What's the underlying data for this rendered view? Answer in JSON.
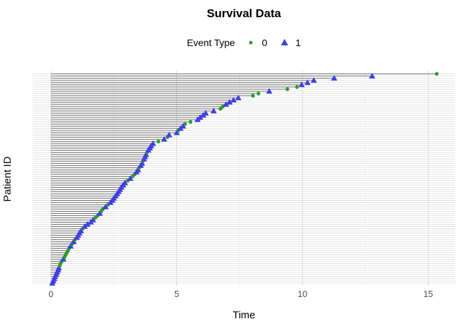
{
  "chart_data": {
    "type": "scatter",
    "title": "Survival Data",
    "xlabel": "Time",
    "ylabel": "Patient ID",
    "xlim": [
      0,
      15.34
    ],
    "x_ticks": [
      "0",
      "5",
      "10",
      "15"
    ],
    "x_tick_values": [
      0,
      5,
      10,
      15
    ],
    "x_minor_tick_values": [
      2.5,
      7.5,
      12.5
    ],
    "y_tick_labels_shown": false,
    "grid": "light gray horizontal line per patient row, vertical major/minor gridlines",
    "legend_position": "top-center",
    "note": "Each row is one patient sorted by time; a dark gray segment runs from time 0 to the event time, ending in a marker: event type 0 = green circle, event type 1 = blue triangle.",
    "n_patients": 97,
    "colors": {
      "0": "#2E9B2E",
      "1": "#4040DF",
      "segment": "#6B6B6B"
    },
    "patients": {
      "times": [
        0.05,
        0.09,
        0.13,
        0.16,
        0.21,
        0.24,
        0.28,
        0.31,
        0.35,
        0.38,
        0.43,
        0.49,
        0.54,
        0.58,
        0.63,
        0.68,
        0.72,
        0.78,
        0.84,
        0.9,
        0.96,
        1.03,
        1.08,
        1.13,
        1.19,
        1.26,
        1.34,
        1.45,
        1.58,
        1.67,
        1.76,
        1.85,
        1.94,
        2.0,
        2.06,
        2.17,
        2.27,
        2.36,
        2.44,
        2.5,
        2.57,
        2.63,
        2.69,
        2.74,
        2.8,
        2.87,
        2.94,
        3.05,
        3.15,
        3.25,
        3.33,
        3.4,
        3.46,
        3.51,
        3.57,
        3.62,
        3.66,
        3.7,
        3.74,
        3.78,
        3.82,
        3.87,
        3.93,
        3.98,
        4.06,
        4.27,
        4.5,
        4.63,
        4.7,
        5.0,
        5.06,
        5.15,
        5.25,
        5.33,
        5.55,
        5.83,
        5.93,
        6.05,
        6.15,
        6.47,
        6.74,
        6.83,
        6.96,
        7.1,
        7.26,
        7.45,
        8.03,
        8.25,
        8.68,
        9.4,
        9.78,
        9.97,
        10.2,
        10.45,
        11.26,
        12.77,
        15.34
      ],
      "events": [
        1,
        1,
        1,
        1,
        1,
        1,
        1,
        1,
        0,
        0,
        0,
        1,
        0,
        0,
        0,
        0,
        0,
        1,
        0,
        1,
        0,
        1,
        1,
        1,
        1,
        0,
        1,
        1,
        1,
        1,
        0,
        0,
        1,
        0,
        0,
        1,
        0,
        1,
        1,
        1,
        1,
        1,
        1,
        1,
        1,
        1,
        1,
        0,
        1,
        0,
        0,
        1,
        1,
        0,
        1,
        1,
        0,
        1,
        1,
        1,
        0,
        1,
        1,
        1,
        1,
        0,
        1,
        0,
        1,
        1,
        0,
        1,
        1,
        0,
        0,
        1,
        1,
        1,
        1,
        1,
        0,
        0,
        1,
        1,
        1,
        1,
        0,
        0,
        1,
        0,
        0,
        1,
        1,
        1,
        1,
        1,
        0
      ]
    }
  },
  "legend": {
    "title": "Event Type",
    "items": [
      {
        "label": "0",
        "shape": "circle",
        "color": "#2E9B2E"
      },
      {
        "label": "1",
        "shape": "triangle",
        "color": "#4040DF"
      }
    ]
  }
}
